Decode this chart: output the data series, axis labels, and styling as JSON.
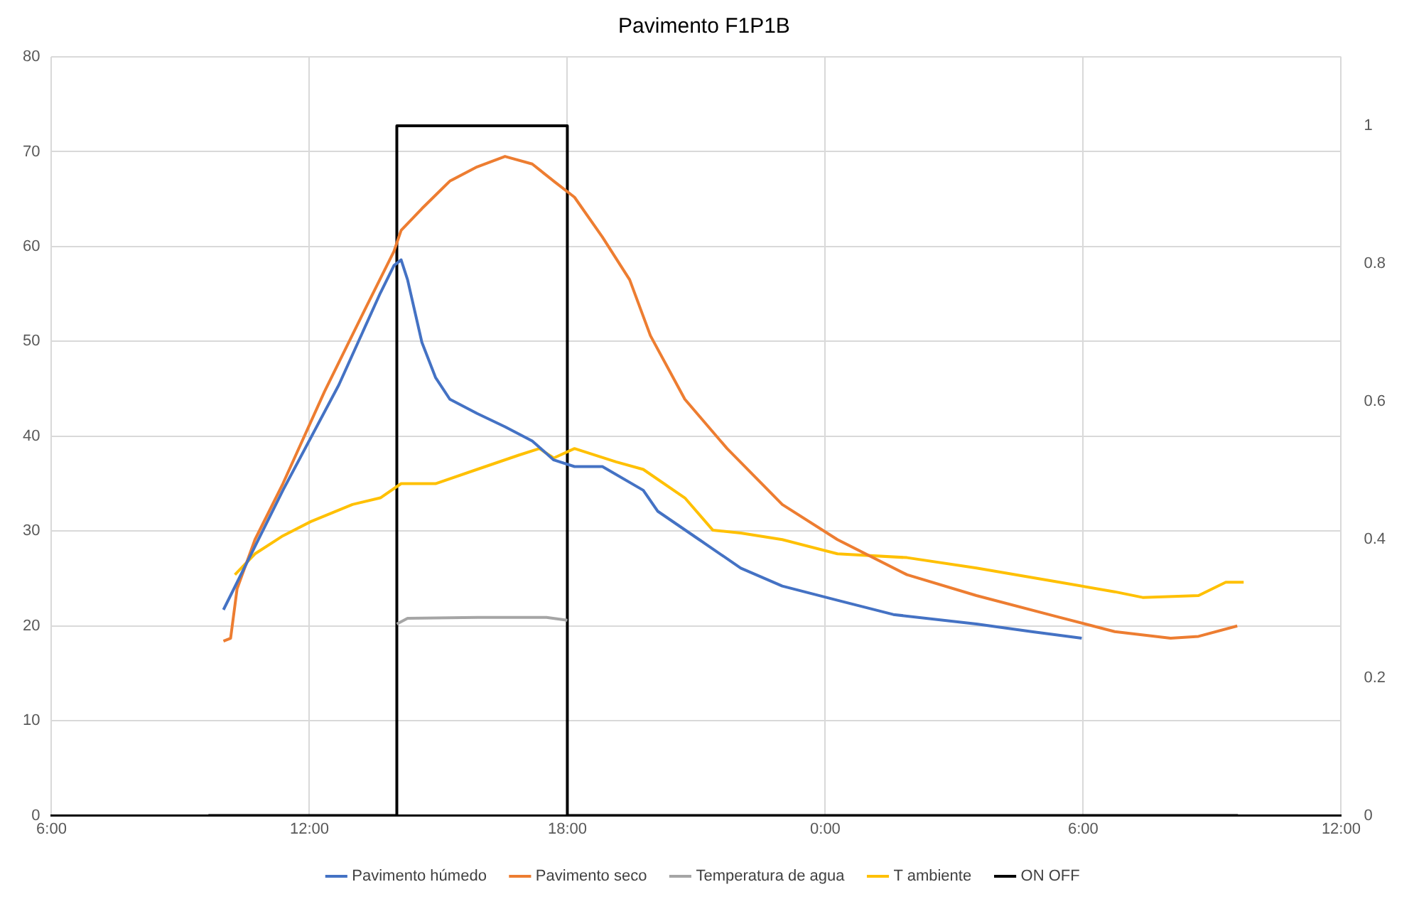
{
  "chart_data": {
    "type": "line",
    "title": "Pavimento F1P1B",
    "xlim": [
      "--01-01T06:00",
      "--01-02T12:00"
    ],
    "xticks": [
      {
        "value": "--01-01T06:00",
        "label": "6:00"
      },
      {
        "value": "--01-01T12:00",
        "label": "12:00"
      },
      {
        "value": "--01-01T18:00",
        "label": "18:00"
      },
      {
        "value": "--01-02T00:00",
        "label": "0:00"
      },
      {
        "value": "--01-02T06:00",
        "label": "6:00"
      },
      {
        "value": "--01-02T12:00",
        "label": "12:00"
      }
    ],
    "ylim": [
      0,
      80
    ],
    "yticks": [
      0,
      10,
      20,
      30,
      40,
      50,
      60,
      70,
      80
    ],
    "y2lim": [
      0,
      1.1
    ],
    "y2ticks": [
      0,
      0.2,
      0.4,
      0.6,
      0.8,
      1
    ],
    "grid": true,
    "legend": "bottom",
    "marker": "none",
    "line_style": "solid",
    "series": [
      {
        "name": "Pavimento húmedo",
        "color": "#4472c4",
        "x": [
          "--01-01T10:00",
          "--01-01T11:23",
          "--01-01T12:41",
          "--01-01T13:39",
          "--01-01T13:58",
          "--01-01T14:08",
          "--01-01T14:17",
          "--01-01T14:37",
          "--01-01T14:56",
          "--01-01T15:16",
          "--01-01T15:54",
          "--01-01T16:33",
          "--01-01T17:11",
          "--01-01T17:41",
          "--01-01T18:10",
          "--01-01T18:49",
          "--01-01T19:46",
          "--01-01T20:06",
          "--01-01T21:04",
          "--01-01T22:02",
          "--01-01T23:00",
          "--01-02T00:17",
          "--01-02T01:35",
          "--01-02T03:31",
          "--01-02T04:48",
          "--01-02T05:58"
        ],
        "values": [
          21.7,
          34.3,
          45.4,
          55.1,
          58.0,
          58.6,
          56.5,
          49.9,
          46.2,
          43.9,
          42.4,
          41.0,
          39.5,
          37.5,
          36.8,
          36.8,
          34.3,
          32.1,
          29.1,
          26.1,
          24.2,
          22.7,
          21.2,
          20.2,
          19.4,
          18.7
        ]
      },
      {
        "name": "Pavimento seco",
        "color": "#ed7d31",
        "x": [
          "--01-01T10:00",
          "--01-01T10:10",
          "--01-01T10:19",
          "--01-01T10:44",
          "--01-01T11:23",
          "--01-01T12:21",
          "--01-01T13:19",
          "--01-01T13:58",
          "--01-01T14:08",
          "--01-01T14:37",
          "--01-01T15:16",
          "--01-01T15:54",
          "--01-01T16:33",
          "--01-01T17:11",
          "--01-01T17:41",
          "--01-01T18:10",
          "--01-01T18:49",
          "--01-01T19:27",
          "--01-01T19:56",
          "--01-01T20:44",
          "--01-01T21:43",
          "--01-01T23:00",
          "--01-02T00:17",
          "--01-02T01:54",
          "--01-02T03:31",
          "--01-02T05:27",
          "--01-02T06:44",
          "--01-02T08:02",
          "--01-02T08:41",
          "--01-02T09:35"
        ],
        "values": [
          18.4,
          18.7,
          23.9,
          29.1,
          35.0,
          44.7,
          53.6,
          59.5,
          61.7,
          64.0,
          66.9,
          68.4,
          69.5,
          68.7,
          66.9,
          65.2,
          61.0,
          56.5,
          50.6,
          43.9,
          38.7,
          32.8,
          29.1,
          25.4,
          23.2,
          20.9,
          19.4,
          18.7,
          18.9,
          20.0
        ]
      },
      {
        "name": "Temperatura de agua",
        "color": "#a5a5a5",
        "x": [
          "--01-01T14:02",
          "--01-01T14:17",
          "--01-01T15:54",
          "--01-01T17:31",
          "--01-01T18:00"
        ],
        "values": [
          20.2,
          20.8,
          20.9,
          20.9,
          20.6
        ]
      },
      {
        "name": "T ambiente",
        "color": "#ffc000",
        "x": [
          "--01-01T10:16",
          "--01-01T10:44",
          "--01-01T11:23",
          "--01-01T12:02",
          "--01-01T13:00",
          "--01-01T13:39",
          "--01-01T14:08",
          "--01-01T14:56",
          "--01-01T15:54",
          "--01-01T16:52",
          "--01-01T17:21",
          "--01-01T17:41",
          "--01-01T18:10",
          "--01-01T19:08",
          "--01-01T19:46",
          "--01-01T20:44",
          "--01-01T21:23",
          "--01-01T22:02",
          "--01-01T23:00",
          "--01-02T00:17",
          "--01-02T01:54",
          "--01-02T03:31",
          "--01-02T05:27",
          "--01-02T06:44",
          "--01-02T07:23",
          "--01-02T08:41",
          "--01-02T09:19",
          "--01-02T09:44"
        ],
        "values": [
          25.4,
          27.6,
          29.5,
          31.0,
          32.8,
          33.5,
          35.0,
          35.0,
          36.5,
          38.0,
          38.7,
          37.7,
          38.7,
          37.3,
          36.5,
          33.5,
          30.1,
          29.8,
          29.1,
          27.6,
          27.2,
          26.1,
          24.6,
          23.6,
          23.0,
          23.2,
          24.6,
          24.6
        ]
      },
      {
        "name": "ON OFF",
        "color": "#000000",
        "axis": "y2",
        "x": [
          "--01-01T09:39",
          "--01-01T14:02",
          "--01-01T14:02",
          "--01-01T18:00",
          "--01-01T18:00",
          "--01-02T09:36"
        ],
        "values": [
          0,
          0,
          1,
          1,
          0,
          0
        ]
      }
    ]
  }
}
